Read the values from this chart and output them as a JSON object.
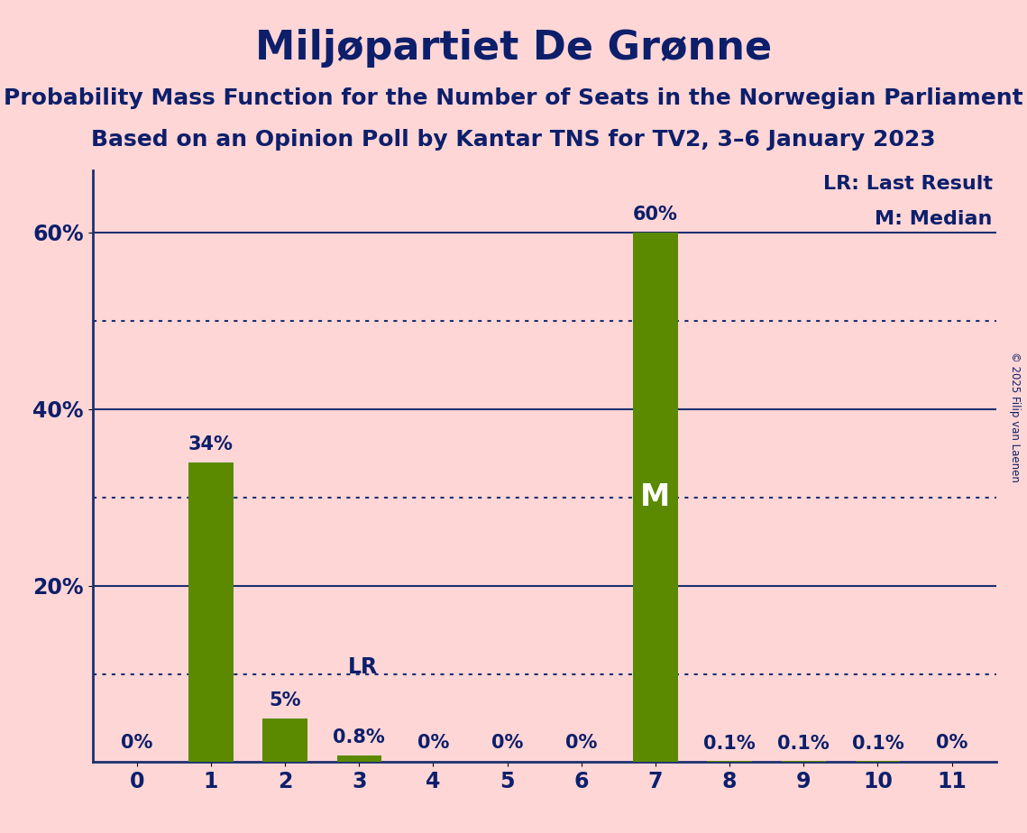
{
  "title": "Miljøpartiet De Grønne",
  "subtitle1": "Probability Mass Function for the Number of Seats in the Norwegian Parliament",
  "subtitle2": "Based on an Opinion Poll by Kantar TNS for TV2, 3–6 January 2023",
  "copyright": "© 2025 Filip van Laenen",
  "seats": [
    0,
    1,
    2,
    3,
    4,
    5,
    6,
    7,
    8,
    9,
    10,
    11
  ],
  "probabilities": [
    0.0,
    34.0,
    5.0,
    0.8,
    0.0,
    0.0,
    0.0,
    60.0,
    0.1,
    0.1,
    0.1,
    0.0
  ],
  "labels": [
    "0%",
    "34%",
    "5%",
    "0.8%",
    "0%",
    "0%",
    "0%",
    "60%",
    "0.1%",
    "0.1%",
    "0.1%",
    "0%"
  ],
  "bar_color": "#5B8A00",
  "background_color": "#FFD6D6",
  "title_color": "#0D1F6B",
  "text_color": "#0D1F6B",
  "grid_color": "#1A3070",
  "last_result_seat": 3,
  "median_seat": 7,
  "ylim": [
    0,
    67
  ],
  "solid_yticks": [
    20,
    40,
    60
  ],
  "dotted_yticks": [
    10,
    30,
    50
  ],
  "legend_lr": "LR: Last Result",
  "legend_m": "M: Median",
  "title_fontsize": 32,
  "subtitle_fontsize": 18,
  "label_fontsize": 15,
  "tick_fontsize": 17,
  "legend_fontsize": 16,
  "median_label_fontsize": 24,
  "lr_label_fontsize": 17
}
